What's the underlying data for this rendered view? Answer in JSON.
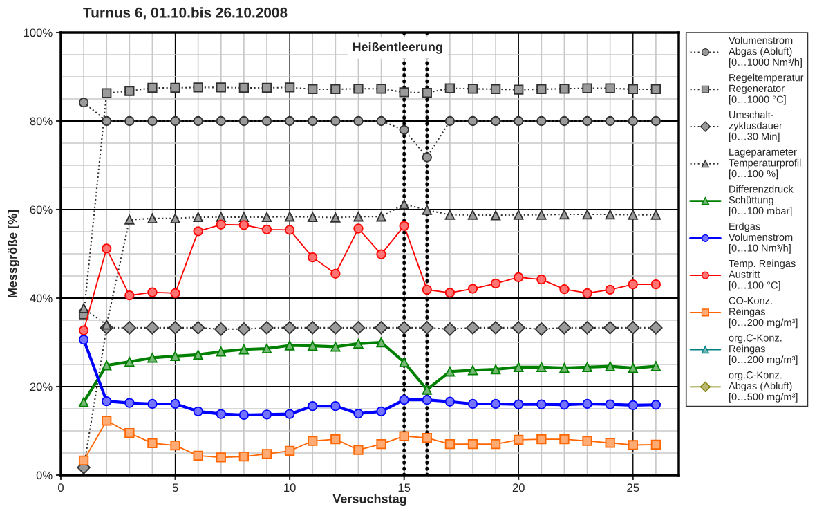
{
  "chart_data": {
    "type": "line",
    "title": "Turnus 6, 01.10.bis 26.10.2008",
    "xlabel": "Versuchstag",
    "ylabel": "Messgröße [%]",
    "x": [
      1,
      2,
      3,
      4,
      5,
      6,
      7,
      8,
      9,
      10,
      11,
      12,
      13,
      14,
      15,
      16,
      17,
      18,
      19,
      20,
      21,
      22,
      23,
      24,
      25,
      26
    ],
    "xlim": [
      0,
      27
    ],
    "xticks": [
      0,
      5,
      10,
      15,
      20,
      25
    ],
    "ylim": [
      0,
      100
    ],
    "yticks": [
      {
        "value": 0,
        "label": "0%"
      },
      {
        "value": 20,
        "label": "20%"
      },
      {
        "value": 40,
        "label": "40%"
      },
      {
        "value": 60,
        "label": "60%"
      },
      {
        "value": 80,
        "label": "80%"
      },
      {
        "value": 100,
        "label": "100%"
      }
    ],
    "grid": true,
    "legend": "right",
    "series": [
      {
        "name": "Volumenstrom\nAbgas (Abluft)\n[0…1000 Nm³/h]",
        "color": "#303030",
        "marker": "circle",
        "line_style": "dotted",
        "values": [
          84.2,
          80,
          80,
          80,
          80,
          80,
          80,
          80,
          80,
          80,
          80,
          80,
          80,
          80,
          78,
          71.8,
          80,
          80,
          80,
          80,
          80,
          80,
          80,
          80,
          80,
          80
        ]
      },
      {
        "name": "Regeltemperatur\nRegenerator\n[0…1000 °C]",
        "color": "#303030",
        "marker": "square",
        "line_style": "dotted",
        "values": [
          36.3,
          86.3,
          86.8,
          87.5,
          87.5,
          87.6,
          87.6,
          87.5,
          87.5,
          87.6,
          87.2,
          87.2,
          87.3,
          87.3,
          86.5,
          86.4,
          87.4,
          87.3,
          87.2,
          87.1,
          87.2,
          87.3,
          87.4,
          87.4,
          87.2,
          87.2
        ]
      },
      {
        "name": "Umschalt-\nzyklusdauer\n[0…30 Min]",
        "color": "#303030",
        "marker": "diamond",
        "line_style": "dotted",
        "values": [
          1.7,
          33.3,
          33.3,
          33.3,
          33.3,
          33.3,
          33.0,
          33.0,
          33.3,
          33.3,
          33.3,
          33.3,
          33.3,
          33.3,
          33.3,
          33.3,
          33.0,
          33.3,
          33.3,
          33.3,
          33.0,
          33.3,
          33.3,
          33.3,
          33.3,
          33.3
        ]
      },
      {
        "name": "Lageparameter\nTemperaturprofil\n[0…100 %]",
        "color": "#303030",
        "marker": "triangle",
        "line_style": "dotted",
        "values": [
          37.7,
          34.0,
          57.7,
          58.0,
          58.0,
          58.3,
          58.3,
          58.3,
          58.3,
          58.4,
          58.3,
          58.2,
          58.4,
          58.4,
          61.2,
          59.9,
          58.8,
          58.8,
          58.7,
          58.8,
          58.8,
          58.9,
          58.9,
          58.9,
          58.8,
          58.8
        ]
      },
      {
        "name": "Differenzdruck\nSchüttung\n[0…100 mbar]",
        "color": "#008000",
        "marker": "triangle",
        "line_style": "solid",
        "values": [
          16.5,
          24.8,
          25.6,
          26.5,
          26.9,
          27.2,
          27.9,
          28.4,
          28.6,
          29.3,
          29.2,
          29.0,
          29.7,
          30.0,
          25.5,
          19.3,
          23.4,
          23.7,
          23.9,
          24.4,
          24.4,
          24.2,
          24.4,
          24.6,
          24.2,
          24.6
        ]
      },
      {
        "name": "Erdgas\nVolumenstrom\n[0…10 Nm³/h]",
        "color": "#0000ff",
        "marker": "circle",
        "line_style": "solid",
        "values": [
          30.6,
          16.7,
          16.3,
          16.1,
          16.1,
          14.4,
          13.8,
          13.6,
          13.7,
          13.8,
          15.6,
          15.6,
          13.9,
          14.4,
          17.0,
          17.0,
          16.6,
          16.1,
          16.1,
          16.0,
          16.0,
          15.9,
          16.1,
          16.0,
          15.8,
          15.9
        ]
      },
      {
        "name": "Temp. Reingas\nAustritt\n[0…100 °C]",
        "color": "#ff0000",
        "marker": "circle",
        "line_style": "solid",
        "values": [
          32.7,
          51.2,
          40.6,
          41.3,
          41.1,
          55.1,
          56.6,
          56.5,
          55.5,
          55.4,
          49.2,
          45.5,
          55.7,
          49.9,
          56.3,
          41.9,
          41.2,
          42.1,
          43.3,
          44.7,
          44.2,
          42.0,
          41.1,
          41.9,
          43.1,
          43.1
        ]
      },
      {
        "name": "CO-Konz.\nReingas\n[0…200 mg/m³]",
        "color": "#ff6600",
        "marker": "square",
        "line_style": "solid",
        "values": [
          3.3,
          12.3,
          9.5,
          7.2,
          6.7,
          4.4,
          4.0,
          4.2,
          4.8,
          5.5,
          7.7,
          8.1,
          5.7,
          7.0,
          8.8,
          8.4,
          7.0,
          7.0,
          7.0,
          8.0,
          8.1,
          8.1,
          7.7,
          7.3,
          6.8,
          6.9
        ]
      },
      {
        "name": "org.C-Konz.\nReingas\n[0…200 mg/m³]",
        "color": "#008080",
        "marker": "triangle",
        "line_style": "solid",
        "values": [
          null,
          null,
          null,
          null,
          null,
          null,
          null,
          null,
          null,
          null,
          null,
          null,
          null,
          null,
          null,
          null,
          null,
          null,
          null,
          null,
          null,
          null,
          null,
          null,
          null,
          null
        ]
      },
      {
        "name": "org.C-Konz.\nAbgas (Abluft)\n[0…500 mg/m³]",
        "color": "#808000",
        "marker": "diamond",
        "line_style": "solid",
        "values": [
          null,
          null,
          null,
          null,
          null,
          null,
          null,
          null,
          null,
          null,
          null,
          null,
          null,
          null,
          null,
          null,
          null,
          null,
          null,
          null,
          null,
          null,
          null,
          null,
          null,
          null
        ]
      }
    ],
    "ref_lines": [
      {
        "axis": "x",
        "value": 15,
        "color": "#000000",
        "line_style": "dotted"
      },
      {
        "axis": "x",
        "value": 16,
        "color": "#000000",
        "line_style": "dotted"
      }
    ],
    "annotations": [
      "Heißentleerung"
    ]
  }
}
